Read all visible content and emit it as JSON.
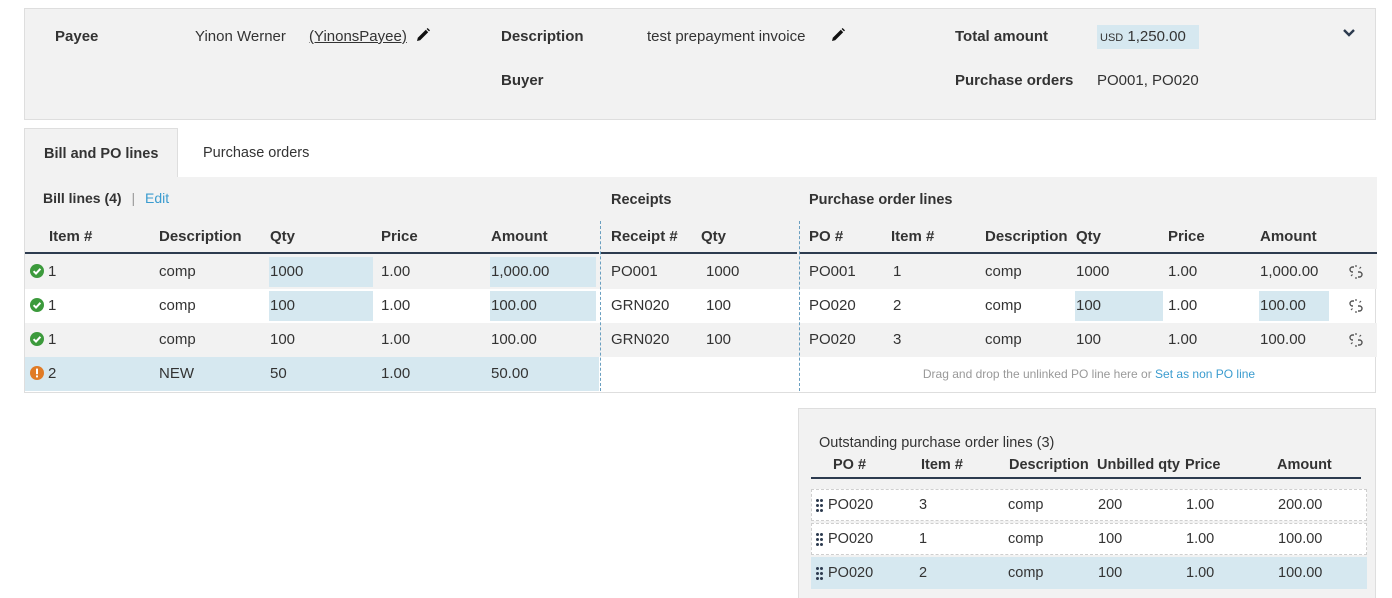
{
  "summary": {
    "payee_label": "Payee",
    "payee_name": "Yinon Werner",
    "payee_id": "(YinonsPayee)",
    "description_label": "Description",
    "description_value": "test prepayment invoice",
    "buyer_label": "Buyer",
    "total_label": "Total amount",
    "total_currency": "USD",
    "total_value": "1,250.00",
    "po_label": "Purchase orders",
    "po_value": "PO001, PO020"
  },
  "tabs": [
    {
      "label": "Bill and PO lines",
      "active": true
    },
    {
      "label": "Purchase orders",
      "active": false
    }
  ],
  "bill_section": {
    "title": "Bill lines (4)",
    "separator": "|",
    "edit_label": "Edit",
    "headers": [
      "Item #",
      "Description",
      "Qty",
      "Price",
      "Amount"
    ]
  },
  "receipts_section": {
    "title": "Receipts",
    "headers": [
      "Receipt #",
      "Qty"
    ]
  },
  "po_section": {
    "title": "Purchase order lines",
    "headers": [
      "PO #",
      "Item #",
      "Description",
      "Qty",
      "Price",
      "Amount"
    ]
  },
  "rows": [
    {
      "status": "ok",
      "item": "1",
      "desc": "comp",
      "qty": "1000",
      "price": "1.00",
      "amount": "1,000.00",
      "receipt": "PO001",
      "rqty": "1000",
      "po": "PO001",
      "po_item": "1",
      "po_desc": "comp",
      "po_qty": "1000",
      "po_price": "1.00",
      "po_amount": "1,000.00"
    },
    {
      "status": "ok",
      "item": "1",
      "desc": "comp",
      "qty": "100",
      "price": "1.00",
      "amount": "100.00",
      "receipt": "GRN020",
      "rqty": "100",
      "po": "PO020",
      "po_item": "2",
      "po_desc": "comp",
      "po_qty": "100",
      "po_price": "1.00",
      "po_amount": "100.00"
    },
    {
      "status": "ok",
      "item": "1",
      "desc": "comp",
      "qty": "100",
      "price": "1.00",
      "amount": "100.00",
      "receipt": "GRN020",
      "rqty": "100",
      "po": "PO020",
      "po_item": "3",
      "po_desc": "comp",
      "po_qty": "100",
      "po_price": "1.00",
      "po_amount": "100.00"
    },
    {
      "status": "warning",
      "item": "2",
      "desc": "NEW",
      "qty": "50",
      "price": "1.00",
      "amount": "50.00"
    }
  ],
  "drop_hint": "Drag and drop the unlinked PO line here or",
  "set_non_po_label": "Set as non PO line",
  "outstanding": {
    "title": "Outstanding purchase order lines (3)",
    "headers": [
      "PO #",
      "Item #",
      "Description",
      "Unbilled qty",
      "Price",
      "Amount"
    ],
    "rows": [
      {
        "po": "PO020",
        "item": "3",
        "desc": "comp",
        "qty": "200",
        "price": "1.00",
        "amount": "200.00"
      },
      {
        "po": "PO020",
        "item": "1",
        "desc": "comp",
        "qty": "100",
        "price": "1.00",
        "amount": "100.00"
      },
      {
        "po": "PO020",
        "item": "2",
        "desc": "comp",
        "qty": "100",
        "price": "1.00",
        "amount": "100.00"
      }
    ]
  },
  "icons": {
    "edit": "pencil-icon",
    "collapse": "chevron-down-icon",
    "ok": "check-circle-icon",
    "warning": "exclamation-circle-icon",
    "unlink": "unlink-icon",
    "drag": "drag-handle-icon"
  },
  "colors": {
    "highlight": "#d6e8f0",
    "panel": "#f2f2f2",
    "ok_green": "#3c9a3c",
    "warning_orange": "#e07b26",
    "link_blue": "#3b9ccf",
    "header_rule": "#2d3b4f"
  }
}
